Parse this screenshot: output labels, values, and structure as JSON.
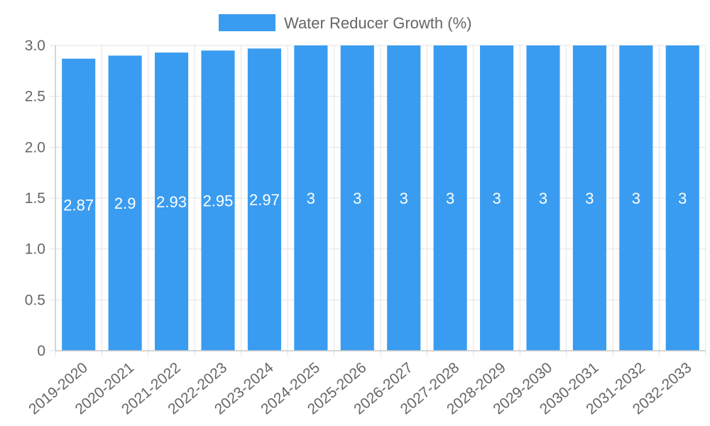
{
  "chart_data": {
    "type": "bar",
    "categories": [
      "2019-2020",
      "2020-2021",
      "2021-2022",
      "2022-2023",
      "2023-2024",
      "2024-2025",
      "2025-2026",
      "2026-2027",
      "2027-2028",
      "2028-2029",
      "2029-2030",
      "2030-2031",
      "2031-2032",
      "2032-2033"
    ],
    "series": [
      {
        "name": "Water Reducer Growth (%)",
        "values": [
          2.87,
          2.9,
          2.93,
          2.95,
          2.97,
          3,
          3,
          3,
          3,
          3,
          3,
          3,
          3,
          3
        ],
        "color": "#3a9cf0"
      }
    ],
    "data_labels": [
      "2.87",
      "2.9",
      "2.93",
      "2.95",
      "2.97",
      "3",
      "3",
      "3",
      "3",
      "3",
      "3",
      "3",
      "3",
      "3"
    ],
    "y_ticks": [
      "0",
      "0.5",
      "1.0",
      "1.5",
      "2.0",
      "2.5",
      "3.0"
    ],
    "y_tick_values": [
      0,
      0.5,
      1.0,
      1.5,
      2.0,
      2.5,
      3.0
    ],
    "ylim": [
      0,
      3.0
    ],
    "title": "",
    "xlabel": "",
    "ylabel": "",
    "grid": true,
    "legend": "top-center"
  }
}
